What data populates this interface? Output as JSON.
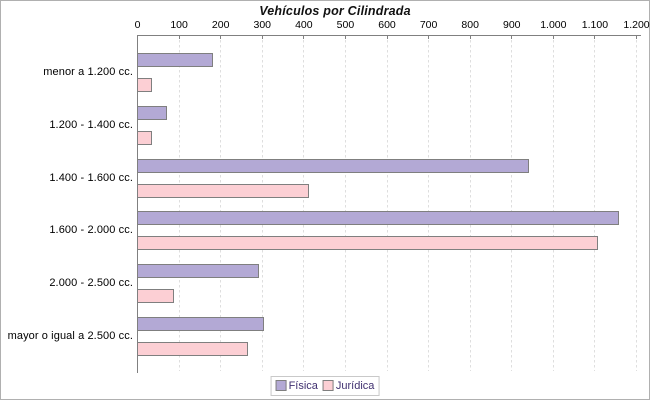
{
  "title": "Vehículos por Cilindrada",
  "chart_data": {
    "type": "bar",
    "orientation": "horizontal",
    "title": "Vehículos por Cilindrada",
    "categories": [
      "menor a 1.200 cc.",
      "1.200 - 1.400 cc.",
      "1.400 - 1.600 cc.",
      "1.600 - 2.000 cc.",
      "2.000 - 2.500 cc.",
      "mayor o igual a 2.500 cc."
    ],
    "series": [
      {
        "name": "Física",
        "color": "#b3a9d5",
        "values": [
          178,
          68,
          940,
          1155,
          290,
          302
        ]
      },
      {
        "name": "Jurídica",
        "color": "#fccfd4",
        "values": [
          32,
          32,
          410,
          1105,
          85,
          263
        ]
      }
    ],
    "xlim": [
      0,
      1200
    ],
    "xtick_interval": 100,
    "xtick_labels": [
      "0",
      "100",
      "200",
      "300",
      "400",
      "500",
      "600",
      "700",
      "800",
      "900",
      "1.000",
      "1.100",
      "1.200"
    ],
    "grid": "vertical-dashed",
    "legend_position": "bottom-center",
    "legend_labels": [
      "Física",
      "Jurídica"
    ]
  },
  "colors": {
    "axis": "#808080",
    "grid": "#dedede",
    "bar_border": "#7f7f7f",
    "legend_text": "#403070",
    "legend_border": "#c9c9c9",
    "page_border": "#b0b0b0"
  }
}
